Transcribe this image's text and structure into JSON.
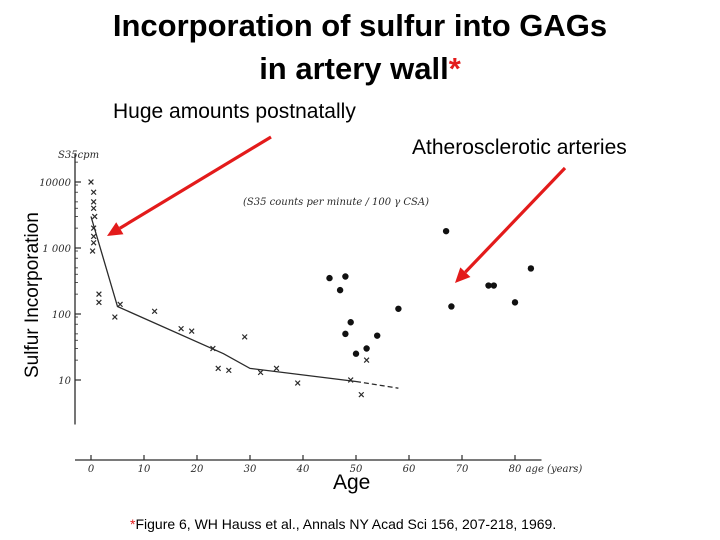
{
  "slide": {
    "title_line1": "Incorporation of sulfur into GAGs",
    "title_line2": "in artery wall",
    "title_marker": "*",
    "annotation_left": "Huge amounts postnatally",
    "annotation_right": "Atherosclerotic arteries",
    "y_axis_title": "Sulfur Incorporation",
    "x_axis_title": "Age",
    "reference_marker": "*",
    "reference": "Figure 6, WH Hauss et al., Annals NY Acad Sci 156, 207-218, 1969.",
    "arrow_color": "#e31b1b"
  },
  "chart_data": {
    "type": "scatter",
    "y_scale": "log",
    "ylim": [
      3,
      20000
    ],
    "xlim": [
      -3,
      85
    ],
    "y_unit_label": "S35cpm",
    "plot_caption": "(S35 counts per minute / 100 γ CSA)",
    "x_unit_label": "age (years)",
    "x_ticks": [
      0,
      10,
      20,
      30,
      40,
      50,
      60,
      70,
      80
    ],
    "y_ticks": [
      10,
      100,
      1000,
      10000
    ],
    "y_tick_labels": [
      "10",
      "100",
      "1 000",
      "10000"
    ],
    "series": [
      {
        "marker": "x",
        "points": [
          [
            0,
            10000
          ],
          [
            0.5,
            7000
          ],
          [
            0.5,
            5000
          ],
          [
            0.5,
            4000
          ],
          [
            0.7,
            3000
          ],
          [
            0.5,
            2000
          ],
          [
            0.5,
            1500
          ],
          [
            0.5,
            1200
          ],
          [
            0.3,
            900
          ],
          [
            1.5,
            200
          ],
          [
            1.5,
            150
          ],
          [
            5.5,
            140
          ],
          [
            4.5,
            90
          ],
          [
            12,
            110
          ],
          [
            17,
            60
          ],
          [
            19,
            55
          ],
          [
            23,
            30
          ],
          [
            24,
            15
          ],
          [
            26,
            14
          ],
          [
            29,
            45
          ],
          [
            32,
            13
          ],
          [
            35,
            15
          ],
          [
            39,
            9
          ],
          [
            49,
            10
          ],
          [
            51,
            6
          ],
          [
            52,
            20
          ]
        ]
      },
      {
        "marker": "dot",
        "points": [
          [
            45,
            350
          ],
          [
            47,
            230
          ],
          [
            48,
            370
          ],
          [
            49,
            75
          ],
          [
            48,
            50
          ],
          [
            50,
            25
          ],
          [
            52,
            30
          ],
          [
            54,
            47
          ],
          [
            58,
            120
          ],
          [
            67,
            1800
          ],
          [
            68,
            130
          ],
          [
            75,
            270
          ],
          [
            76,
            270
          ],
          [
            80,
            150
          ],
          [
            83,
            490
          ]
        ]
      },
      {
        "name": "",
        "marker": "line",
        "points": [
          [
            0,
            3000
          ],
          [
            5,
            130
          ],
          [
            25,
            25
          ],
          [
            30,
            15
          ],
          [
            50,
            9.5
          ]
        ]
      },
      {
        "marker": "dashed",
        "points": [
          [
            50,
            9.5
          ],
          [
            58,
            7.5
          ]
        ]
      }
    ],
    "grid": false,
    "legend": "none"
  }
}
